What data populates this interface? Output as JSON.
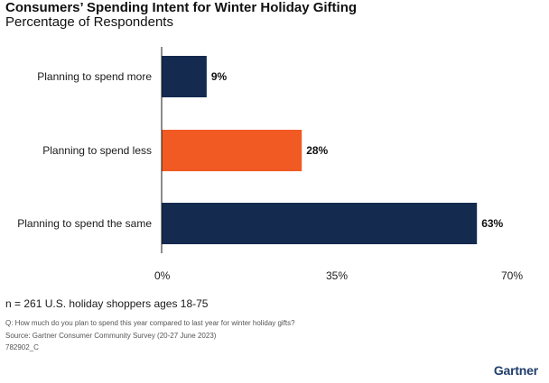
{
  "header": {
    "title": "Consumers’ Spending Intent for Winter Holiday Gifting",
    "subtitle": "Percentage of Respondents"
  },
  "colors": {
    "navy": "#142a4f",
    "orange": "#f25a23",
    "axis": "#1a1a1a",
    "brand": "#1f3e6b"
  },
  "chart_data": {
    "type": "bar",
    "orientation": "horizontal",
    "title": "Consumers’ Spending Intent for Winter Holiday Gifting",
    "subtitle": "Percentage of Respondents",
    "categories": [
      "Planning to spend more",
      "Planning to spend less",
      "Planning to spend the same"
    ],
    "values": [
      9,
      28,
      63
    ],
    "value_labels": [
      "9%",
      "28%",
      "63%"
    ],
    "bar_colors": [
      "#142a4f",
      "#f25a23",
      "#142a4f"
    ],
    "xlim": [
      0,
      70
    ],
    "xticks": [
      0,
      35,
      70
    ],
    "xtick_labels": [
      "0%",
      "35%",
      "70%"
    ],
    "xlabel": "",
    "ylabel": "",
    "grid": false,
    "legend": "none"
  },
  "footer": {
    "sample": "n = 261 U.S. holiday shoppers ages 18-75",
    "question": "Q: How much do you plan to spend this year compared to last year for winter holiday gifts?",
    "source": "Source: Gartner Consumer Community Survey (20-27 June 2023)",
    "code": "782902_C",
    "brand": "Gartner"
  }
}
